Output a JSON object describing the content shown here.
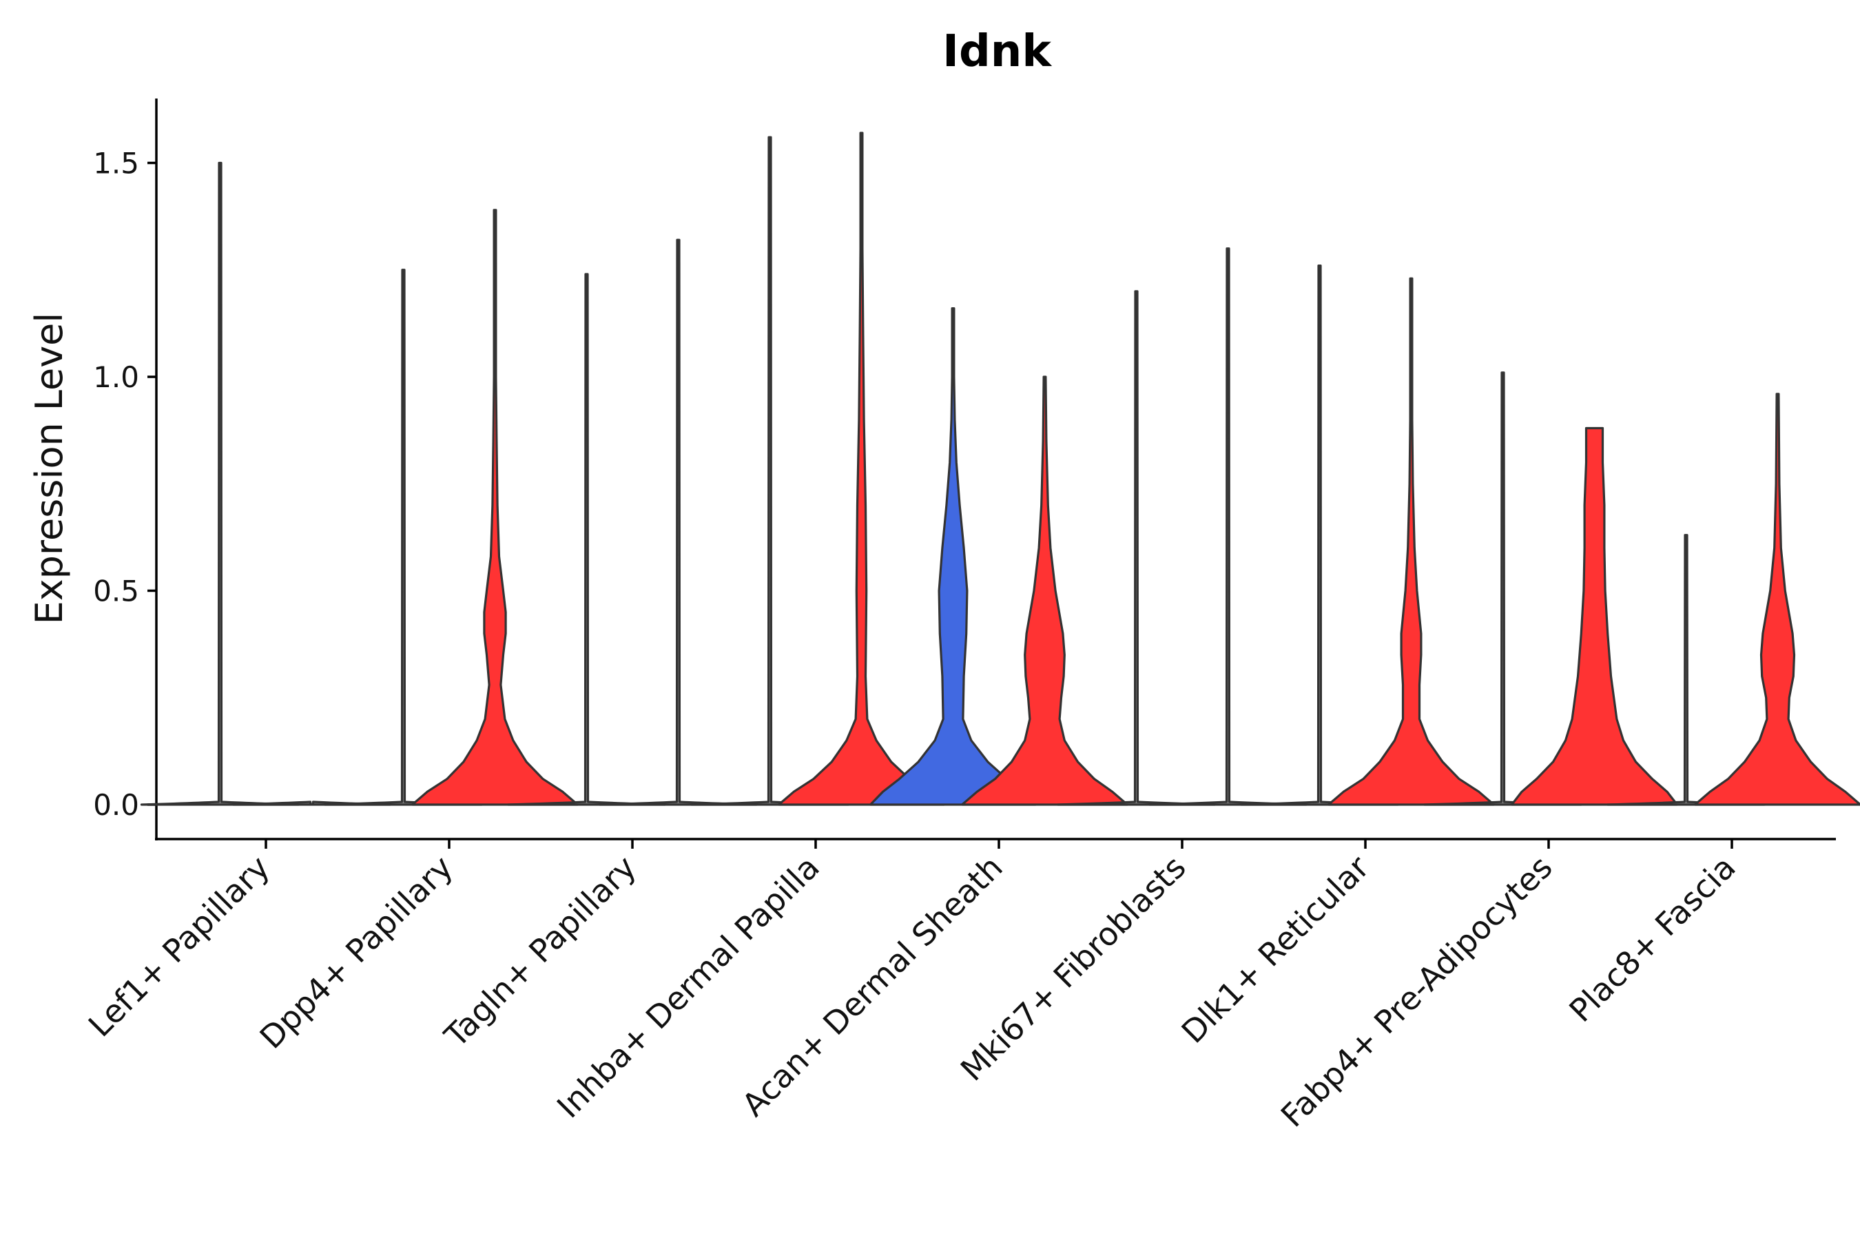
{
  "chart_data": {
    "type": "violin",
    "title": "Idnk",
    "xlabel": "",
    "ylabel": "Expression Level",
    "ylim": [
      -0.08,
      1.65
    ],
    "yticks": [
      0.0,
      0.5,
      1.0,
      1.5
    ],
    "ytick_labels": [
      "0.0",
      "0.5",
      "1.0",
      "1.5"
    ],
    "colors": {
      "red": "#FF3333",
      "blue": "#4169E1",
      "empty": "#888888"
    },
    "categories": [
      "Lef1+ Papillary",
      "Dpp4+ Papillary",
      "Tagln+ Papillary",
      "Inhba+ Dermal Papilla",
      "Acan+ Dermal Sheath",
      "Mki67+ Fibroblasts",
      "Dlk1+ Reticular",
      "Fabp4+ Pre-Adipocytes",
      "Plac8+ Fascia"
    ],
    "groups": [
      {
        "category": "Lef1+ Papillary",
        "violins": [
          {
            "side": "left",
            "color": "empty",
            "max": 1.5,
            "profile": []
          },
          {
            "side": "right",
            "color": "empty",
            "max": 0.0,
            "profile": []
          }
        ]
      },
      {
        "category": "Dpp4+ Papillary",
        "violins": [
          {
            "side": "left",
            "color": "empty",
            "max": 1.25,
            "profile": []
          },
          {
            "side": "right",
            "color": "red",
            "max": 1.39,
            "profile": [
              [
                0.0,
                1.0
              ],
              [
                0.03,
                0.82
              ],
              [
                0.06,
                0.58
              ],
              [
                0.1,
                0.38
              ],
              [
                0.15,
                0.22
              ],
              [
                0.2,
                0.12
              ],
              [
                0.28,
                0.07
              ],
              [
                0.35,
                0.1
              ],
              [
                0.4,
                0.13
              ],
              [
                0.45,
                0.13
              ],
              [
                0.5,
                0.1
              ],
              [
                0.58,
                0.05
              ],
              [
                0.7,
                0.03
              ],
              [
                0.85,
                0.02
              ],
              [
                1.0,
                0.01
              ],
              [
                1.39,
                0.005
              ]
            ]
          }
        ]
      },
      {
        "category": "Tagln+ Papillary",
        "violins": [
          {
            "side": "left",
            "color": "empty",
            "max": 1.24,
            "profile": []
          },
          {
            "side": "right",
            "color": "empty",
            "max": 1.32,
            "profile": []
          }
        ]
      },
      {
        "category": "Inhba+ Dermal Papilla",
        "violins": [
          {
            "side": "left",
            "color": "empty",
            "max": 1.56,
            "profile": []
          },
          {
            "side": "right",
            "color": "red",
            "max": 1.57,
            "profile": [
              [
                0.0,
                1.0
              ],
              [
                0.03,
                0.82
              ],
              [
                0.06,
                0.58
              ],
              [
                0.1,
                0.36
              ],
              [
                0.15,
                0.18
              ],
              [
                0.2,
                0.07
              ],
              [
                0.3,
                0.05
              ],
              [
                0.5,
                0.06
              ],
              [
                0.7,
                0.05
              ],
              [
                0.9,
                0.03
              ],
              [
                1.1,
                0.02
              ],
              [
                1.3,
                0.01
              ],
              [
                1.57,
                0.005
              ]
            ]
          }
        ]
      },
      {
        "category": "Acan+ Dermal Sheath",
        "violins": [
          {
            "side": "left",
            "color": "blue",
            "max": 1.16,
            "profile": [
              [
                0.0,
                1.0
              ],
              [
                0.03,
                0.85
              ],
              [
                0.06,
                0.65
              ],
              [
                0.1,
                0.42
              ],
              [
                0.15,
                0.22
              ],
              [
                0.2,
                0.12
              ],
              [
                0.3,
                0.13
              ],
              [
                0.4,
                0.16
              ],
              [
                0.5,
                0.17
              ],
              [
                0.6,
                0.13
              ],
              [
                0.7,
                0.08
              ],
              [
                0.8,
                0.04
              ],
              [
                0.9,
                0.02
              ],
              [
                1.0,
                0.01
              ],
              [
                1.16,
                0.005
              ]
            ]
          },
          {
            "side": "right",
            "color": "red",
            "max": 1.0,
            "profile": [
              [
                0.0,
                1.0
              ],
              [
                0.03,
                0.82
              ],
              [
                0.06,
                0.6
              ],
              [
                0.1,
                0.4
              ],
              [
                0.15,
                0.24
              ],
              [
                0.2,
                0.18
              ],
              [
                0.25,
                0.2
              ],
              [
                0.3,
                0.23
              ],
              [
                0.35,
                0.24
              ],
              [
                0.4,
                0.22
              ],
              [
                0.5,
                0.13
              ],
              [
                0.6,
                0.07
              ],
              [
                0.7,
                0.04
              ],
              [
                0.85,
                0.02
              ],
              [
                1.0,
                0.005
              ]
            ]
          }
        ]
      },
      {
        "category": "Mki67+ Fibroblasts",
        "violins": [
          {
            "side": "left",
            "color": "empty",
            "max": 1.2,
            "profile": []
          },
          {
            "side": "right",
            "color": "empty",
            "max": 1.3,
            "profile": []
          }
        ]
      },
      {
        "category": "Dlk1+ Reticular",
        "violins": [
          {
            "side": "left",
            "color": "empty",
            "max": 1.26,
            "profile": []
          },
          {
            "side": "right",
            "color": "red",
            "max": 1.23,
            "profile": [
              [
                0.0,
                1.0
              ],
              [
                0.03,
                0.82
              ],
              [
                0.06,
                0.58
              ],
              [
                0.1,
                0.38
              ],
              [
                0.15,
                0.2
              ],
              [
                0.2,
                0.1
              ],
              [
                0.28,
                0.1
              ],
              [
                0.35,
                0.12
              ],
              [
                0.4,
                0.12
              ],
              [
                0.5,
                0.07
              ],
              [
                0.6,
                0.04
              ],
              [
                0.75,
                0.02
              ],
              [
                0.9,
                0.01
              ],
              [
                1.23,
                0.005
              ]
            ]
          }
        ]
      },
      {
        "category": "Fabp4+ Pre-Adipocytes",
        "violins": [
          {
            "side": "left",
            "color": "empty",
            "max": 1.01,
            "profile": []
          },
          {
            "side": "right",
            "color": "red",
            "max": 0.88,
            "profile": [
              [
                0.0,
                1.0
              ],
              [
                0.03,
                0.88
              ],
              [
                0.06,
                0.7
              ],
              [
                0.1,
                0.5
              ],
              [
                0.15,
                0.35
              ],
              [
                0.2,
                0.27
              ],
              [
                0.3,
                0.2
              ],
              [
                0.4,
                0.16
              ],
              [
                0.5,
                0.13
              ],
              [
                0.6,
                0.12
              ],
              [
                0.7,
                0.12
              ],
              [
                0.8,
                0.1
              ],
              [
                0.88,
                0.1
              ]
            ]
          }
        ]
      },
      {
        "category": "Plac8+ Fascia",
        "violins": [
          {
            "side": "left",
            "color": "empty",
            "max": 0.63,
            "profile": []
          },
          {
            "side": "right",
            "color": "red",
            "max": 0.96,
            "profile": [
              [
                0.0,
                1.0
              ],
              [
                0.03,
                0.82
              ],
              [
                0.06,
                0.6
              ],
              [
                0.1,
                0.4
              ],
              [
                0.15,
                0.22
              ],
              [
                0.2,
                0.13
              ],
              [
                0.25,
                0.14
              ],
              [
                0.3,
                0.19
              ],
              [
                0.35,
                0.2
              ],
              [
                0.4,
                0.18
              ],
              [
                0.5,
                0.09
              ],
              [
                0.6,
                0.04
              ],
              [
                0.75,
                0.02
              ],
              [
                0.96,
                0.005
              ]
            ]
          }
        ]
      }
    ]
  }
}
